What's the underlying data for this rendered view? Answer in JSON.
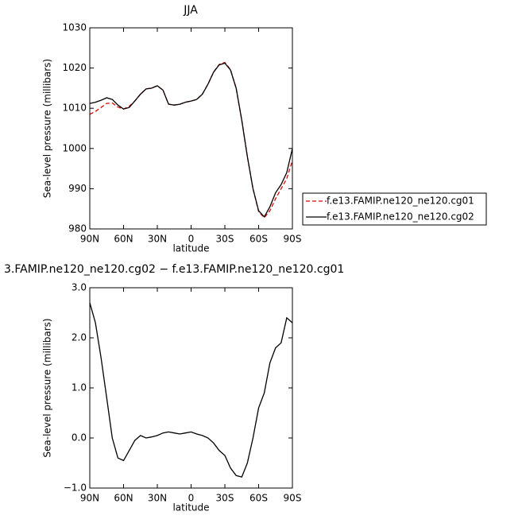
{
  "chart_data": [
    {
      "type": "line",
      "title": "JJA",
      "x_label": "latitude",
      "y_label": "Sea-level pressure (millibars)",
      "x": [
        90,
        85,
        80,
        75,
        70,
        65,
        60,
        55,
        50,
        45,
        40,
        35,
        30,
        25,
        20,
        15,
        10,
        5,
        0,
        -5,
        -10,
        -15,
        -20,
        -25,
        -30,
        -35,
        -40,
        -45,
        -50,
        -55,
        -60,
        -65,
        -70,
        -75,
        -80,
        -85,
        -90
      ],
      "series": [
        {
          "name": "f.e13.FAMIP.ne120_ne120.cg01",
          "color": "#e00000",
          "dash": "dashed",
          "values": [
            1008.5,
            1009.2,
            1010.2,
            1011.2,
            1011.3,
            1010.3,
            1009.8,
            1010.5,
            1011.8,
            1013.5,
            1014.8,
            1015.0,
            1015.6,
            1014.5,
            1011.0,
            1010.8,
            1011.0,
            1011.5,
            1011.8,
            1012.2,
            1013.5,
            1016.0,
            1019.0,
            1020.9,
            1021.4,
            1019.6,
            1015.0,
            1007.0,
            998.0,
            990.0,
            984.3,
            982.8,
            984.5,
            987.5,
            990.0,
            992.5,
            997.0
          ]
        },
        {
          "name": "f.e13.FAMIP.ne120_ne120.cg02",
          "color": "#000000",
          "dash": "solid",
          "values": [
            1011.2,
            1011.5,
            1012.0,
            1012.6,
            1012.2,
            1010.8,
            1009.8,
            1010.2,
            1011.8,
            1013.5,
            1014.8,
            1015.0,
            1015.6,
            1014.5,
            1011.0,
            1010.8,
            1011.0,
            1011.5,
            1011.8,
            1012.2,
            1013.5,
            1016.0,
            1019.0,
            1020.8,
            1021.2,
            1019.5,
            1015.0,
            1007.0,
            998.0,
            990.0,
            984.5,
            983.0,
            985.5,
            989.0,
            991.0,
            994.0,
            1000.0
          ]
        }
      ],
      "xlim": [
        90,
        -90
      ],
      "xticks": [
        {
          "value": 90,
          "label": "90N"
        },
        {
          "value": 60,
          "label": "60N"
        },
        {
          "value": 30,
          "label": "30N"
        },
        0,
        {
          "value": -30,
          "label": "30S"
        },
        {
          "value": -60,
          "label": "60S"
        },
        {
          "value": -90,
          "label": "90S"
        }
      ],
      "ylim": [
        980,
        1030
      ],
      "yticks": [
        980,
        990,
        1000,
        1010,
        1020,
        1030
      ],
      "legend": "right"
    },
    {
      "type": "line",
      "title": "3.FAMIP.ne120_ne120.cg02 − f.e13.FAMIP.ne120_ne120.cg01",
      "x_label": "latitude",
      "y_label": "Sea-level pressure (millibars)",
      "x": [
        90,
        85,
        80,
        75,
        70,
        65,
        60,
        55,
        50,
        45,
        40,
        35,
        30,
        25,
        20,
        15,
        10,
        5,
        0,
        -5,
        -10,
        -15,
        -20,
        -25,
        -30,
        -35,
        -40,
        -45,
        -50,
        -55,
        -60,
        -65,
        -70,
        -75,
        -80,
        -85,
        -90
      ],
      "series": [
        {
          "color": "#000000",
          "dash": "solid",
          "values": [
            2.7,
            2.3,
            1.6,
            0.8,
            0.0,
            -0.4,
            -0.45,
            -0.25,
            -0.05,
            0.05,
            0.0,
            0.02,
            0.05,
            0.1,
            0.12,
            0.1,
            0.08,
            0.1,
            0.12,
            0.08,
            0.05,
            0.0,
            -0.1,
            -0.25,
            -0.35,
            -0.6,
            -0.75,
            -0.78,
            -0.5,
            0.0,
            0.6,
            0.9,
            1.5,
            1.8,
            1.9,
            2.4,
            2.3
          ]
        }
      ],
      "xlim": [
        90,
        -90
      ],
      "xticks": [
        {
          "value": 90,
          "label": "90N"
        },
        {
          "value": 60,
          "label": "60N"
        },
        {
          "value": 30,
          "label": "30N"
        },
        0,
        {
          "value": -30,
          "label": "30S"
        },
        {
          "value": -60,
          "label": "60S"
        },
        {
          "value": -90,
          "label": "90S"
        }
      ],
      "ylim": [
        -1,
        3
      ],
      "yticks": [
        {
          "value": -1,
          "label": "−1.0"
        },
        {
          "value": 0,
          "label": "0.0"
        },
        {
          "value": 1,
          "label": "1.0"
        },
        {
          "value": 2,
          "label": "2.0"
        },
        {
          "value": 3,
          "label": "3.0"
        }
      ]
    }
  ]
}
